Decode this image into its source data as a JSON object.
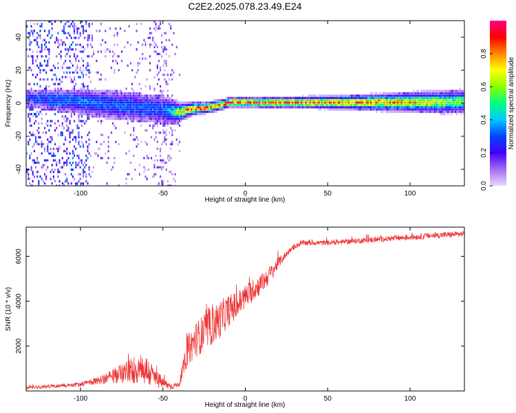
{
  "title": "C2E2.2025.078.23.49.E24",
  "chart_data": [
    {
      "type": "heatmap",
      "xlabel": "Height of straight line (km)",
      "ylabel": "Frequency (Hz)",
      "xlim": [
        -133,
        133
      ],
      "ylim": [
        -50,
        50
      ],
      "xticks": [
        -100,
        -50,
        0,
        50,
        100
      ],
      "yticks": [
        -40,
        -20,
        0,
        20,
        40
      ],
      "colorbar": {
        "label": "Normalized spectral amplitude",
        "range": [
          0,
          1
        ],
        "ticks": [
          0.0,
          0.2,
          0.4,
          0.6,
          0.8
        ],
        "colors": [
          "#e8d9ff",
          "#a26cf0",
          "#4400ff",
          "#0044ff",
          "#00c8ff",
          "#00ff80",
          "#8cff00",
          "#ffff00",
          "#ff8800",
          "#ff0000",
          "#ff0080"
        ]
      },
      "ridge": {
        "x": [
          -130,
          -120,
          -110,
          -100,
          -90,
          -80,
          -70,
          -60,
          -50,
          -45,
          -40,
          -35,
          -30,
          -25,
          -20,
          -15,
          -10,
          -5,
          0,
          5,
          10,
          20,
          40,
          60,
          80,
          100,
          120,
          133
        ],
        "center": [
          3,
          2,
          1.5,
          1,
          0,
          -1,
          -2,
          -3,
          -4,
          -5,
          -5.5,
          -4,
          -3,
          -3,
          -2,
          -1,
          0.5,
          0.5,
          0.5,
          0.5,
          0.5,
          0.5,
          0.5,
          0.5,
          0.5,
          0.7,
          0.8,
          1
        ],
        "spread": [
          2.5,
          3,
          3.2,
          3.5,
          4,
          4,
          4,
          4,
          4,
          3.5,
          2.5,
          2,
          1.6,
          1.5,
          1.5,
          1.4,
          1.3,
          1.3,
          1.3,
          1.3,
          1.4,
          1.4,
          1.6,
          1.8,
          2.2,
          2.6,
          3,
          3.2
        ],
        "amplitude": [
          0.15,
          0.25,
          0.3,
          0.35,
          0.32,
          0.3,
          0.3,
          0.3,
          0.3,
          0.45,
          0.65,
          0.8,
          0.85,
          0.85,
          0.78,
          0.85,
          0.95,
          0.95,
          0.95,
          0.9,
          0.85,
          0.9,
          0.85,
          0.82,
          0.78,
          0.72,
          0.6,
          0.55
        ]
      }
    },
    {
      "type": "line",
      "xlabel": "Height of straight line (km)",
      "ylabel": "SNR (10 * v/v)",
      "xlim": [
        -133,
        133
      ],
      "ylim": [
        0,
        7300
      ],
      "xticks": [
        -100,
        -50,
        0,
        50,
        100
      ],
      "yticks": [
        2000,
        4000,
        6000
      ],
      "color": "#ee3333",
      "x": [
        -133,
        -120,
        -100,
        -90,
        -80,
        -75,
        -70,
        -65,
        -60,
        -55,
        -50,
        -45,
        -40,
        -35,
        -30,
        -25,
        -20,
        -15,
        -10,
        -5,
        0,
        5,
        10,
        15,
        20,
        25,
        30,
        35,
        40,
        50,
        60,
        70,
        80,
        90,
        100,
        110,
        120,
        133
      ],
      "y": [
        150,
        200,
        300,
        450,
        650,
        800,
        900,
        1000,
        900,
        600,
        350,
        200,
        300,
        1800,
        2300,
        2600,
        2900,
        3200,
        3600,
        3800,
        4200,
        4500,
        4800,
        5200,
        5700,
        6100,
        6450,
        6600,
        6600,
        6600,
        6650,
        6700,
        6750,
        6800,
        6850,
        6900,
        6950,
        7000
      ],
      "noise": [
        80,
        80,
        100,
        150,
        350,
        450,
        550,
        750,
        700,
        500,
        250,
        150,
        100,
        700,
        800,
        850,
        850,
        850,
        700,
        650,
        550,
        500,
        450,
        400,
        250,
        150,
        120,
        120,
        110,
        110,
        110,
        120,
        120,
        130,
        130,
        130,
        130,
        130
      ]
    }
  ]
}
